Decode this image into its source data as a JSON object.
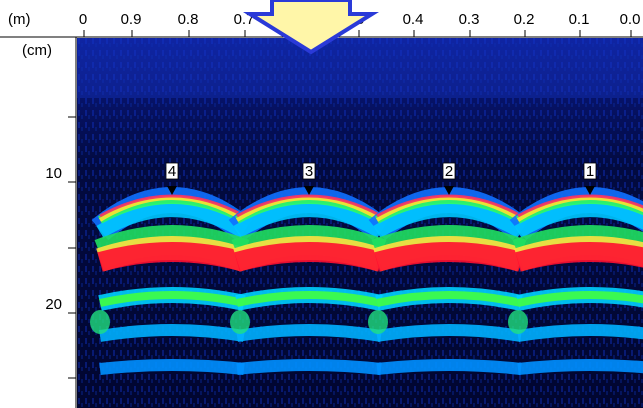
{
  "axes": {
    "top_unit": "(m)",
    "top_ticks": [
      "0",
      "0.9",
      "0.8",
      "0.7",
      ".5",
      "0.4",
      "0.3",
      "0.2",
      "0.1",
      "0.0"
    ],
    "left_unit": "(cm)",
    "left_ticks": [
      "10",
      "20"
    ]
  },
  "markers": [
    "4",
    "3",
    "2",
    "1"
  ]
}
